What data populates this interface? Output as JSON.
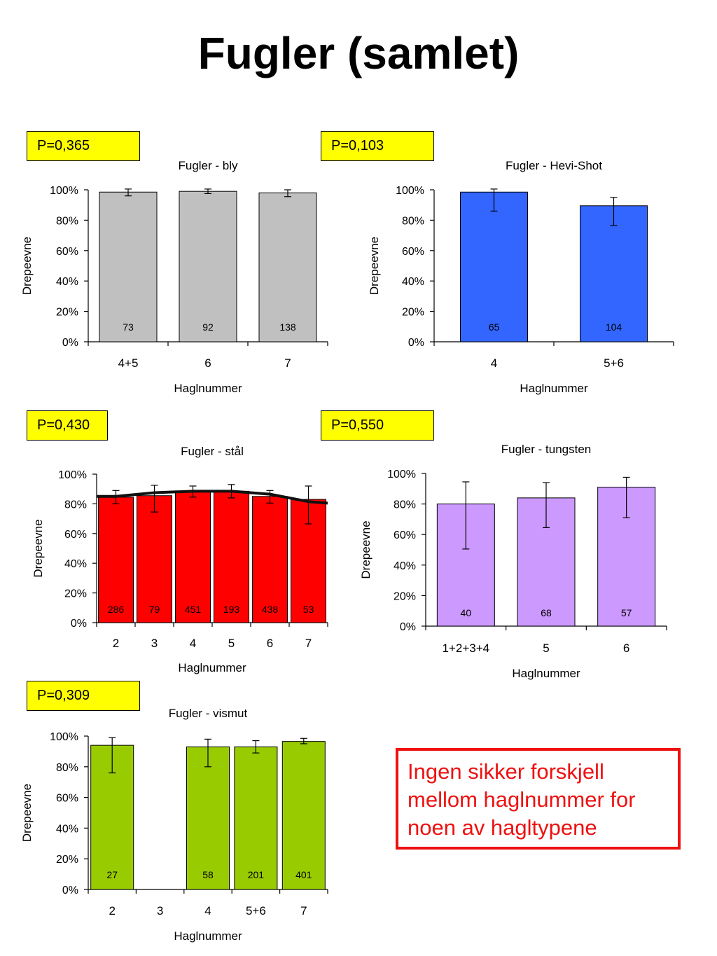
{
  "page": {
    "title": "Fugler (samlet)",
    "note": "Ingen sikker forskjell mellom haglnummer for noen av hagltypene"
  },
  "chart_data": [
    {
      "type": "bar",
      "p_label": "P=0,365",
      "title": "Fugler - bly",
      "xlabel": "Haglnummer",
      "ylabel": "Drepeevne",
      "ylim": [
        0,
        100
      ],
      "yticks": [
        "0%",
        "20%",
        "40%",
        "60%",
        "80%",
        "100%"
      ],
      "color": "#c0c0c0",
      "categories": [
        "4+5",
        "6",
        "7"
      ],
      "values": [
        98.5,
        99,
        98
      ],
      "error_low": [
        96,
        97.5,
        95.5
      ],
      "error_high": [
        100.5,
        100.5,
        100
      ],
      "n_labels": [
        "73",
        "92",
        "138"
      ],
      "trend": false
    },
    {
      "type": "bar",
      "p_label": "P=0,103",
      "title": "Fugler - Hevi-Shot",
      "xlabel": "Haglnummer",
      "ylabel": "Drepeevne",
      "ylim": [
        0,
        100
      ],
      "yticks": [
        "0%",
        "20%",
        "40%",
        "60%",
        "80%",
        "100%"
      ],
      "color": "#3366ff",
      "categories": [
        "4",
        "5+6"
      ],
      "values": [
        98.5,
        89.5
      ],
      "error_low": [
        86,
        76.5
      ],
      "error_high": [
        100.5,
        95
      ],
      "n_labels": [
        "65",
        "104"
      ],
      "trend": false
    },
    {
      "type": "bar",
      "p_label": "P=0,430",
      "title": "Fugler - stål",
      "xlabel": "Haglnummer",
      "ylabel": "Drepeevne",
      "ylim": [
        0,
        100
      ],
      "yticks": [
        "0%",
        "20%",
        "40%",
        "60%",
        "80%",
        "100%"
      ],
      "color": "#ff0000",
      "categories": [
        "2",
        "3",
        "4",
        "5",
        "6",
        "7"
      ],
      "values": [
        84.5,
        85.5,
        88,
        88.5,
        85,
        83
      ],
      "error_low": [
        80,
        74.5,
        84.5,
        84,
        80.5,
        66.5
      ],
      "error_high": [
        89,
        92.5,
        92,
        93,
        89,
        92
      ],
      "n_labels": [
        "286",
        "79",
        "451",
        "193",
        "438",
        "53"
      ],
      "trend": true,
      "trend_values": [
        85,
        87.5,
        88.5,
        88.5,
        86.5,
        81.5
      ]
    },
    {
      "type": "bar",
      "p_label": "P=0,550",
      "title": "Fugler - tungsten",
      "xlabel": "Haglnummer",
      "ylabel": "Drepeevne",
      "ylim": [
        0,
        100
      ],
      "yticks": [
        "0%",
        "20%",
        "40%",
        "60%",
        "80%",
        "100%"
      ],
      "color": "#cc99ff",
      "categories": [
        "1+2+3+4",
        "5",
        "6"
      ],
      "values": [
        80,
        84,
        91
      ],
      "error_low": [
        50.5,
        64.5,
        71
      ],
      "error_high": [
        94.5,
        94,
        97.5
      ],
      "n_labels": [
        "40",
        "68",
        "57"
      ],
      "trend": false
    },
    {
      "type": "bar",
      "p_label": "P=0,309",
      "title": "Fugler - vismut",
      "xlabel": "Haglnummer",
      "ylabel": "Drepeevne",
      "ylim": [
        0,
        100
      ],
      "yticks": [
        "0%",
        "20%",
        "40%",
        "60%",
        "80%",
        "100%"
      ],
      "color": "#99cc00",
      "categories": [
        "2",
        "3",
        "4",
        "5+6",
        "7"
      ],
      "values": [
        94,
        null,
        93,
        93,
        96.5
      ],
      "error_low": [
        76,
        null,
        80,
        89,
        95
      ],
      "error_high": [
        99,
        null,
        98,
        97,
        98.5
      ],
      "n_labels": [
        "27",
        "",
        "58",
        "201",
        "401"
      ],
      "trend": false
    }
  ]
}
